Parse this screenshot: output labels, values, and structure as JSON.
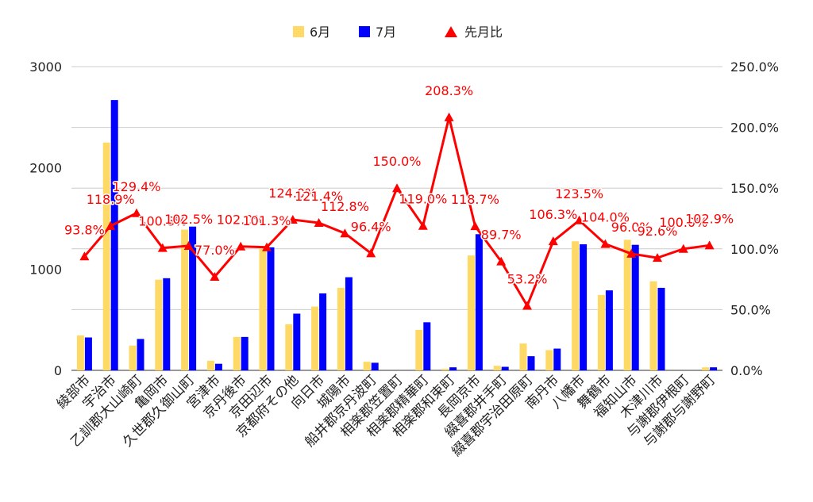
{
  "chart_data": {
    "type": "bar+line",
    "title": "",
    "xlabel": "",
    "ylabel": "",
    "legend_position": "top-center",
    "grid": true,
    "categories": [
      "綾部市",
      "宇治市",
      "乙訓郡大山崎町",
      "亀岡市",
      "久世郡久御山町",
      "宮津市",
      "京丹後市",
      "京田辺市",
      "京都府その他",
      "向日市",
      "城陽市",
      "船井郡京丹波町",
      "相楽郡笠置町",
      "相楽郡精華町",
      "相楽郡和束町",
      "長岡京市",
      "綴喜郡井手町",
      "綴喜郡宇治田原町",
      "南丹市",
      "八幡市",
      "舞鶴市",
      "福知山市",
      "木津川市",
      "与謝郡伊根町",
      "与謝郡与謝野町"
    ],
    "y_left": {
      "ylim": [
        0,
        3000
      ],
      "ticks": [
        "0",
        "1000",
        "2000",
        "3000"
      ]
    },
    "y_right": {
      "ylim": [
        0,
        250
      ],
      "ticks": [
        "0.0%",
        "50.0%",
        "100.0%",
        "150.0%",
        "200.0%",
        "250.0%"
      ]
    },
    "series": [
      {
        "name": "6月",
        "type": "bar",
        "axis": "left",
        "color": "#ffd966",
        "values": [
          345,
          2250,
          245,
          895,
          1390,
          95,
          330,
          1200,
          455,
          630,
          815,
          85,
          0,
          400,
          15,
          1135,
          45,
          265,
          200,
          1275,
          745,
          1290,
          880,
          0,
          30
        ]
      },
      {
        "name": "7月",
        "type": "bar",
        "axis": "left",
        "color": "#0000ff",
        "values": [
          325,
          2670,
          310,
          910,
          1420,
          65,
          330,
          1215,
          560,
          760,
          920,
          75,
          0,
          475,
          30,
          1345,
          35,
          140,
          215,
          1245,
          790,
          1240,
          815,
          0,
          30
        ]
      },
      {
        "name": "先月比",
        "type": "line",
        "axis": "right",
        "color": "#ff0000",
        "marker": "triangle",
        "values": [
          93.8,
          118.9,
          129.4,
          100.8,
          102.5,
          77.0,
          102.0,
          101.3,
          124.0,
          121.4,
          112.8,
          96.4,
          150.0,
          119.0,
          208.3,
          118.7,
          89.7,
          53.2,
          106.3,
          123.5,
          104.0,
          96.0,
          92.6,
          100.0,
          102.9
        ],
        "labels": [
          "93.8%",
          "118.9%",
          "129.4%",
          "100.8%",
          "102.5%",
          "77.0%",
          "102.0%",
          "101.3%",
          "124.0%",
          "121.4%",
          "112.8%",
          "96.4%",
          "150.0%",
          "119.0%",
          "208.3%",
          "118.7%",
          "89.7%",
          "53.2%",
          "106.3%",
          "123.5%",
          "104.0%",
          "96.0%",
          "92.6%",
          "100.0%",
          "102.9%"
        ]
      }
    ]
  },
  "colors": {
    "grid": "#cccccc",
    "axis": "#333333",
    "text": "#222222"
  }
}
